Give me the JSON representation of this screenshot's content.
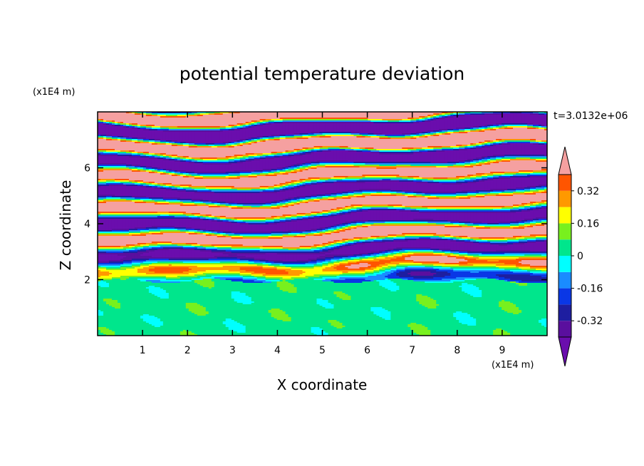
{
  "chart_data": {
    "type": "heatmap",
    "title": "potential temperature deviation",
    "xlabel": "X coordinate",
    "ylabel": "Z coordinate",
    "x_unit": "(x1E4 m)",
    "y_unit": "(x1E4 m)",
    "time_label": "t=3.0132e+06",
    "xlim": [
      0,
      10
    ],
    "ylim": [
      0,
      8
    ],
    "x_ticks": [
      1,
      2,
      3,
      4,
      5,
      6,
      7,
      8,
      9
    ],
    "y_ticks": [
      2,
      4,
      6
    ],
    "colorbar": {
      "levels": [
        -0.4,
        -0.32,
        -0.24,
        -0.16,
        -0.08,
        0,
        0.08,
        0.16,
        0.24,
        0.32,
        0.4
      ],
      "labels": [
        "0.32",
        "0.16",
        "0",
        "-0.16",
        "-0.32"
      ],
      "label_values": [
        0.32,
        0.16,
        0,
        -0.16,
        -0.32
      ],
      "colors": [
        "#5a0f9e",
        "#1e1ea0",
        "#0a37e6",
        "#1a8cff",
        "#00ffff",
        "#00e68c",
        "#78f01e",
        "#ffff00",
        "#ff9900",
        "#ff5500",
        "#ff2a2a"
      ],
      "over_color": "#f5a0a0",
      "under_color": "#6a0dad"
    },
    "field_description": "stable boundary layer below z~2 (values near 0 to 0.08), gravity-wave layers above with alternating strong positive (above 0.4) and negative (below -0.4) bands"
  }
}
